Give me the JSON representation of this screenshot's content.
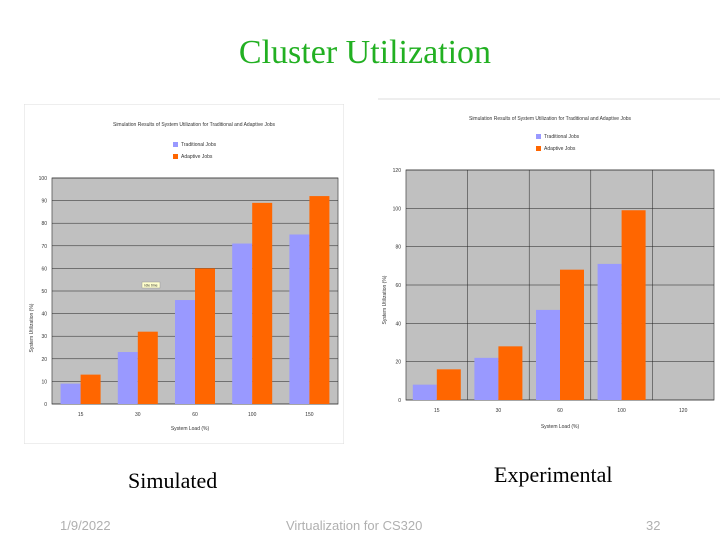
{
  "slide": {
    "title": "Cluster Utilization",
    "caption_left": "Simulated",
    "caption_right": "Experimental",
    "footer_date": "1/9/2022",
    "footer_course": "Virtualization for CS320",
    "page_number": "32"
  },
  "colors": {
    "title": "#22b022",
    "traditional": "#9999ff",
    "adaptive": "#ff6600",
    "plot_bg": "#c0c0c0"
  },
  "chart_data": [
    {
      "type": "bar",
      "title": "Simulation Results of System Utilization for Traditional and Adaptive Jobs",
      "xlabel": "System Load (%)",
      "ylabel": "System Utilization (%)",
      "categories": [
        "15",
        "30",
        "60",
        "100",
        "150"
      ],
      "ylim": [
        0,
        100
      ],
      "yticks": [
        "0",
        "10",
        "20",
        "30",
        "40",
        "50",
        "60",
        "70",
        "80",
        "90",
        "100"
      ],
      "legend_position": "top-center",
      "annotation": "Idle time",
      "series": [
        {
          "name": "Traditional Jobs",
          "values": [
            9,
            23,
            46,
            71,
            75
          ]
        },
        {
          "name": "Adaptive Jobs",
          "values": [
            13,
            32,
            60,
            89,
            92
          ]
        }
      ]
    },
    {
      "type": "bar",
      "title": "Simulation Results of System Utilization for Traditional and Adaptive Jobs",
      "xlabel": "System Load (%)",
      "ylabel": "System Utilization (%)",
      "categories": [
        "15",
        "30",
        "60",
        "100",
        "120"
      ],
      "ylim": [
        0,
        120
      ],
      "yticks": [
        "0",
        "20",
        "40",
        "60",
        "80",
        "100",
        "120"
      ],
      "legend_position": "top-center",
      "series": [
        {
          "name": "Traditional Jobs",
          "values": [
            8,
            22,
            47,
            71,
            null
          ]
        },
        {
          "name": "Adaptive Jobs",
          "values": [
            16,
            28,
            68,
            99,
            null
          ]
        }
      ]
    }
  ]
}
